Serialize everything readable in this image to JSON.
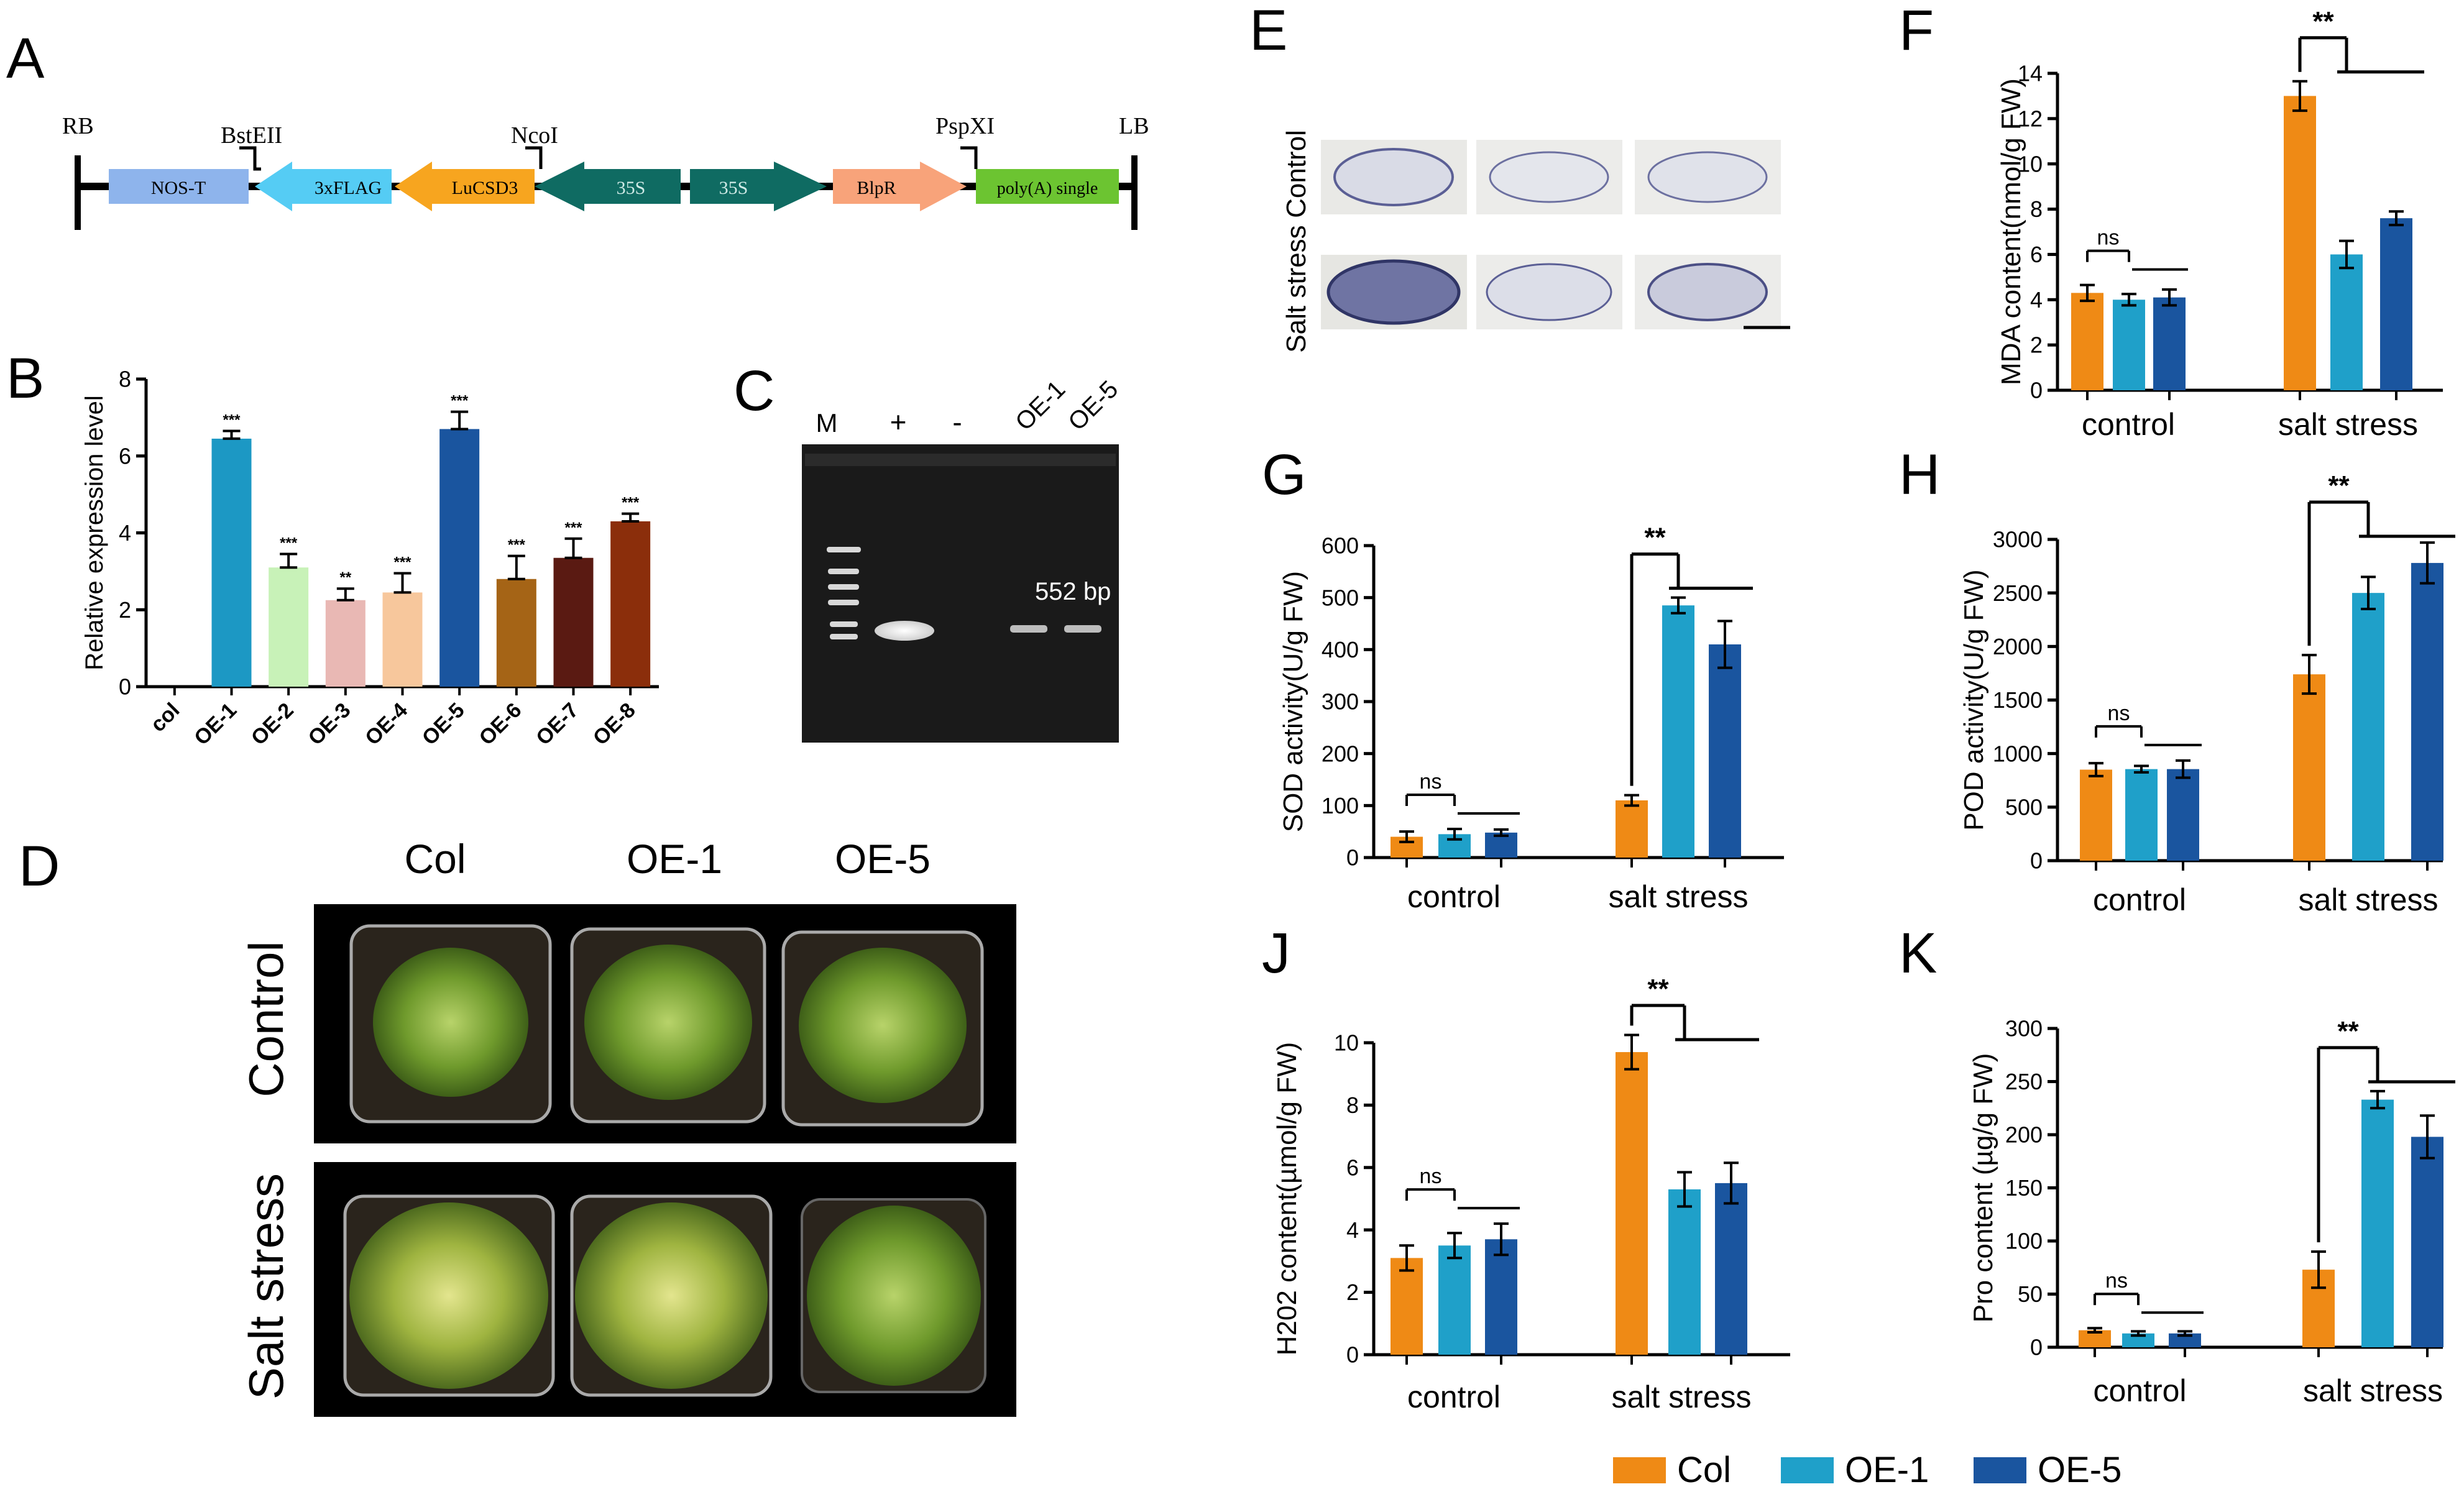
{
  "panel_letters": {
    "A": "A",
    "B": "B",
    "C": "C",
    "D": "D",
    "E": "E",
    "F": "F",
    "G": "G",
    "H": "H",
    "J": "J",
    "K": "K"
  },
  "construct": {
    "site_labels": [
      "RB",
      "BstEII",
      "NcoI",
      "PspXI",
      "LB"
    ],
    "segments": [
      "NOS-T",
      "3xFLAG",
      "LuCSD3",
      "35S",
      "35S",
      "BlpR",
      "poly(A) single"
    ]
  },
  "gel": {
    "lane_labels": [
      "M",
      "+",
      "-",
      "OE-1",
      "OE-5"
    ],
    "band_label": "552 bp"
  },
  "photo_d": {
    "col_labels": [
      "Col",
      "OE-1",
      "OE-5"
    ],
    "row_labels": [
      "Control",
      "Salt stress"
    ]
  },
  "photo_e": {
    "row_labels": [
      "Control",
      "Salt stress"
    ]
  },
  "legend": {
    "items": [
      {
        "label": "Col",
        "color": "#EF8A15"
      },
      {
        "label": "OE-1",
        "color": "#1FA0C9"
      },
      {
        "label": "OE-5",
        "color": "#1A559F"
      }
    ]
  },
  "colors": {
    "col": "#EF8A15",
    "oe1": "#1FA0C9",
    "oe5": "#1A559F"
  },
  "chart_data": [
    {
      "id": "B",
      "type": "bar",
      "ylabel": "Relative expression level",
      "ylim": [
        0,
        8
      ],
      "yticks": [
        "0",
        "2",
        "4",
        "6",
        "8"
      ],
      "categories": [
        "col",
        "OE-1",
        "OE-2",
        "OE-3",
        "OE-4",
        "OE-5",
        "OE-6",
        "OE-7",
        "OE-8"
      ],
      "values": [
        0,
        6.45,
        3.1,
        2.25,
        2.45,
        6.7,
        2.8,
        3.35,
        4.3
      ],
      "errors": [
        0,
        0.2,
        0.35,
        0.3,
        0.5,
        0.45,
        0.6,
        0.5,
        0.2
      ],
      "significance": [
        "",
        "***",
        "***",
        "**",
        "***",
        "***",
        "***",
        "***",
        "***"
      ],
      "colors": [
        "#FFFFFF",
        "#1C98C4",
        "#C8F2B8",
        "#E9B8B4",
        "#F7C79C",
        "#1A559F",
        "#A56416",
        "#5A1A12",
        "#8B2E0B"
      ]
    },
    {
      "id": "F",
      "type": "bar",
      "ylabel": "MDA content(nmol/g FW)",
      "ylim": [
        0,
        14
      ],
      "yticks": [
        "0",
        "2",
        "4",
        "6",
        "8",
        "10",
        "12",
        "14"
      ],
      "categories": [
        "control",
        "salt stress"
      ],
      "series": [
        {
          "name": "Col",
          "values": [
            4.3,
            13.0
          ],
          "errors": [
            0.35,
            0.65
          ]
        },
        {
          "name": "OE-1",
          "values": [
            4.0,
            6.0
          ],
          "errors": [
            0.25,
            0.6
          ]
        },
        {
          "name": "OE-5",
          "values": [
            4.1,
            7.6
          ],
          "errors": [
            0.35,
            0.3
          ]
        }
      ],
      "annotations": [
        "ns",
        "**"
      ]
    },
    {
      "id": "G",
      "type": "bar",
      "ylabel": "SOD activity(U/g FW)",
      "ylim": [
        0,
        600
      ],
      "yticks": [
        "0",
        "100",
        "200",
        "300",
        "400",
        "500",
        "600"
      ],
      "categories": [
        "control",
        "salt stress"
      ],
      "series": [
        {
          "name": "Col",
          "values": [
            40,
            110
          ],
          "errors": [
            10,
            10
          ]
        },
        {
          "name": "OE-1",
          "values": [
            45,
            485
          ],
          "errors": [
            10,
            15
          ]
        },
        {
          "name": "OE-5",
          "values": [
            48,
            410
          ],
          "errors": [
            6,
            45
          ]
        }
      ],
      "annotations": [
        "ns",
        "**"
      ]
    },
    {
      "id": "H",
      "type": "bar",
      "ylabel": "POD activity(U/g FW)",
      "ylim": [
        0,
        3000
      ],
      "yticks": [
        "0",
        "500",
        "1000",
        "1500",
        "2000",
        "2500",
        "3000"
      ],
      "categories": [
        "control",
        "salt stress"
      ],
      "series": [
        {
          "name": "Col",
          "values": [
            850,
            1740
          ],
          "errors": [
            60,
            180
          ]
        },
        {
          "name": "OE-1",
          "values": [
            855,
            2500
          ],
          "errors": [
            30,
            150
          ]
        },
        {
          "name": "OE-5",
          "values": [
            855,
            2780
          ],
          "errors": [
            80,
            190
          ]
        }
      ],
      "annotations": [
        "ns",
        "**"
      ]
    },
    {
      "id": "J",
      "type": "bar",
      "ylabel": "H202 content(µmol/g FW)",
      "ylim": [
        0,
        10
      ],
      "yticks": [
        "0",
        "2",
        "4",
        "6",
        "8",
        "10"
      ],
      "categories": [
        "control",
        "salt stress"
      ],
      "series": [
        {
          "name": "Col",
          "values": [
            3.1,
            9.7
          ],
          "errors": [
            0.4,
            0.55
          ]
        },
        {
          "name": "OE-1",
          "values": [
            3.5,
            5.3
          ],
          "errors": [
            0.4,
            0.55
          ]
        },
        {
          "name": "OE-5",
          "values": [
            3.7,
            5.5
          ],
          "errors": [
            0.5,
            0.65
          ]
        }
      ],
      "annotations": [
        "ns",
        "**"
      ]
    },
    {
      "id": "K",
      "type": "bar",
      "ylabel": "Pro content (µg/g FW)",
      "ylim": [
        0,
        300
      ],
      "yticks": [
        "0",
        "50",
        "100",
        "150",
        "200",
        "250",
        "300"
      ],
      "categories": [
        "control",
        "salt stress"
      ],
      "series": [
        {
          "name": "Col",
          "values": [
            16,
            73
          ],
          "errors": [
            2,
            17
          ]
        },
        {
          "name": "OE-1",
          "values": [
            13,
            233
          ],
          "errors": [
            2,
            8
          ]
        },
        {
          "name": "OE-5",
          "values": [
            13,
            198
          ],
          "errors": [
            2,
            20
          ]
        }
      ],
      "annotations": [
        "ns",
        "**"
      ]
    }
  ]
}
